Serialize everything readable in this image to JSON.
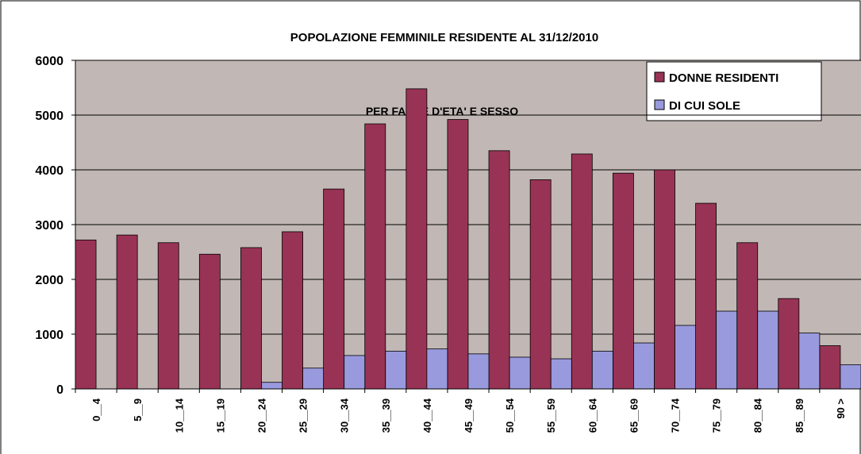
{
  "chart_data": {
    "type": "bar",
    "title": "POPOLAZIONE FEMMINILE RESIDENTE AL 31/12/2010",
    "subtitle": "PER FASCE D'ETA' E SESSO",
    "categories": [
      "0__4",
      "5__9",
      "10__14",
      "15__19",
      "20__24",
      "25__29",
      "30__34",
      "35__39",
      "40__44",
      "45__49",
      "50__54",
      "55__59",
      "60__64",
      "65__69",
      "70__74",
      "75__79",
      "80__84",
      "85__89",
      "90 >"
    ],
    "series": [
      {
        "name": "DONNE RESIDENTI",
        "color": "#993355",
        "values": [
          2720,
          2810,
          2670,
          2460,
          2580,
          2870,
          3650,
          4840,
          5480,
          4920,
          4350,
          3820,
          4290,
          3940,
          4000,
          3390,
          2670,
          1650,
          790
        ]
      },
      {
        "name": "DI CUI SOLE",
        "color": "#9999dd",
        "values": [
          0,
          0,
          0,
          0,
          120,
          380,
          610,
          690,
          730,
          640,
          580,
          550,
          690,
          840,
          1160,
          1420,
          1420,
          1020,
          440
        ]
      }
    ],
    "ylim": [
      0,
      6000
    ],
    "yticks": [
      0,
      1000,
      2000,
      3000,
      4000,
      5000,
      6000
    ],
    "grid": true,
    "legend": "top-right"
  }
}
